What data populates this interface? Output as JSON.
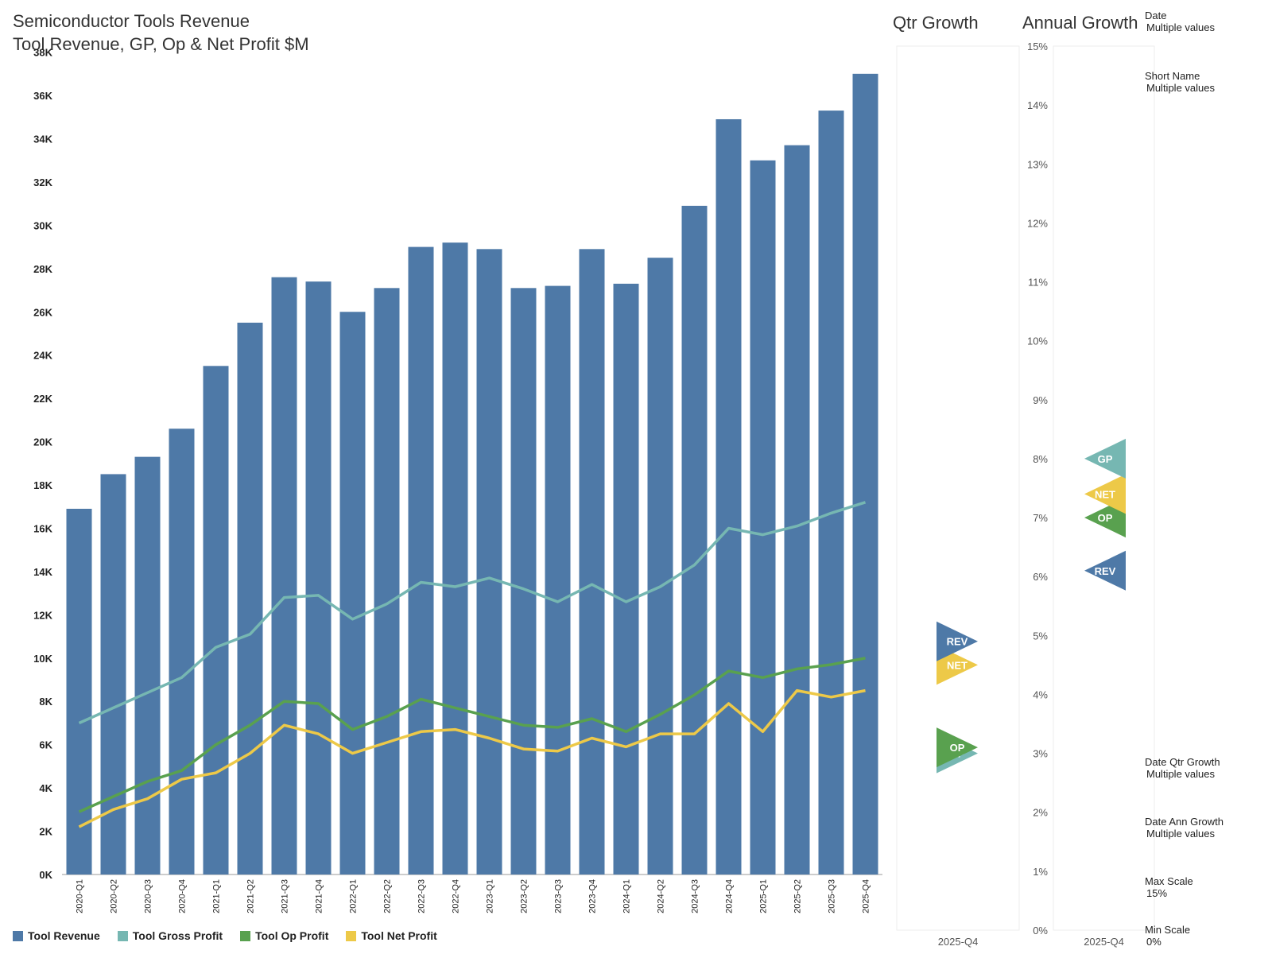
{
  "titles": {
    "line1": "Semiconductor Tools Revenue",
    "line2": "Tool Revenue, GP, Op & Net Profit $M",
    "qtr": "Qtr Growth",
    "ann": "Annual Growth"
  },
  "filters": [
    {
      "label": "Date",
      "value": "Multiple values"
    },
    {
      "label": "Short Name",
      "value": "Multiple values"
    },
    {
      "label": "Date Qtr Growth",
      "value": "Multiple values"
    },
    {
      "label": "Date Ann Growth",
      "value": "Multiple values"
    },
    {
      "label": "Max Scale",
      "value": "15%"
    },
    {
      "label": "Min Scale",
      "value": "0%"
    }
  ],
  "colors": {
    "revenue": "#4e79a7",
    "gross_profit": "#76b7b2",
    "op_profit": "#59a14f",
    "net_profit": "#edc948",
    "axis": "#555555",
    "pane_border": "#eeeeee"
  },
  "chart_data": [
    {
      "type": "bar",
      "title": "Semiconductor Tools Revenue — Tool Revenue, GP, Op & Net Profit $M",
      "categories": [
        "2020-Q1",
        "2020-Q2",
        "2020-Q3",
        "2020-Q4",
        "2021-Q1",
        "2021-Q2",
        "2021-Q3",
        "2021-Q4",
        "2022-Q1",
        "2022-Q2",
        "2022-Q3",
        "2022-Q4",
        "2023-Q1",
        "2023-Q2",
        "2023-Q3",
        "2023-Q4",
        "2024-Q1",
        "2024-Q2",
        "2024-Q3",
        "2024-Q4",
        "2025-Q1",
        "2025-Q2",
        "2025-Q3",
        "2025-Q4"
      ],
      "ylim": [
        0,
        38500
      ],
      "yticks": [
        0,
        2000,
        4000,
        6000,
        8000,
        10000,
        12000,
        14000,
        16000,
        18000,
        20000,
        22000,
        24000,
        26000,
        28000,
        30000,
        32000,
        34000,
        36000,
        38000
      ],
      "ytick_labels": [
        "0K",
        "2K",
        "4K",
        "6K",
        "8K",
        "10K",
        "12K",
        "14K",
        "16K",
        "18K",
        "20K",
        "22K",
        "24K",
        "26K",
        "28K",
        "30K",
        "32K",
        "34K",
        "36K",
        "38K"
      ],
      "series": [
        {
          "name": "Tool Revenue",
          "kind": "bar",
          "color_key": "revenue",
          "values": [
            16900,
            18500,
            19300,
            20600,
            23500,
            25500,
            27600,
            27400,
            26000,
            27100,
            29000,
            29200,
            28900,
            27100,
            27200,
            28900,
            27300,
            28500,
            30900,
            34900,
            33000,
            33700,
            35300,
            37000
          ]
        },
        {
          "name": "Tool Gross Profit",
          "kind": "line",
          "color_key": "gross_profit",
          "values": [
            7000,
            7700,
            8400,
            9100,
            10500,
            11100,
            12800,
            12900,
            11800,
            12500,
            13500,
            13300,
            13700,
            13200,
            12600,
            13400,
            12600,
            13300,
            14300,
            16000,
            15700,
            16100,
            16700,
            17200
          ]
        },
        {
          "name": "Tool Op Profit",
          "kind": "line",
          "color_key": "op_profit",
          "values": [
            2900,
            3600,
            4300,
            4800,
            6000,
            6900,
            8000,
            7900,
            6700,
            7300,
            8100,
            7700,
            7300,
            6900,
            6800,
            7200,
            6600,
            7400,
            8300,
            9400,
            9100,
            9500,
            9700,
            10000
          ]
        },
        {
          "name": "Tool Net Profit",
          "kind": "line",
          "color_key": "net_profit",
          "values": [
            2200,
            3000,
            3500,
            4400,
            4700,
            5600,
            6900,
            6500,
            5600,
            6100,
            6600,
            6700,
            6300,
            5800,
            5700,
            6300,
            5900,
            6500,
            6500,
            7900,
            6600,
            8500,
            8200,
            8500
          ]
        }
      ]
    },
    {
      "type": "scatter",
      "title": "Qtr Growth",
      "x_category": "2025-Q4",
      "ylim": [
        0,
        15
      ],
      "unit": "%",
      "points": [
        {
          "label": "REV",
          "value": 4.9,
          "color_key": "revenue"
        },
        {
          "label": "NET",
          "value": 4.5,
          "color_key": "net_profit"
        },
        {
          "label": "OP",
          "value": 3.1,
          "color_key": "op_profit"
        },
        {
          "label": "GP",
          "value": 3.0,
          "color_key": "gross_profit"
        }
      ]
    },
    {
      "type": "scatter",
      "title": "Annual Growth",
      "x_category": "2025-Q4",
      "ylim": [
        0,
        15
      ],
      "unit": "%",
      "yticks": [
        0,
        1,
        2,
        3,
        4,
        5,
        6,
        7,
        8,
        9,
        10,
        11,
        12,
        13,
        14,
        15
      ],
      "ytick_labels": [
        "0%",
        "1%",
        "2%",
        "3%",
        "4%",
        "5%",
        "6%",
        "7%",
        "8%",
        "9%",
        "10%",
        "11%",
        "12%",
        "13%",
        "14%",
        "15%"
      ],
      "points": [
        {
          "label": "GP",
          "value": 8.0,
          "color_key": "gross_profit"
        },
        {
          "label": "NET",
          "value": 7.4,
          "color_key": "net_profit"
        },
        {
          "label": "OP",
          "value": 7.0,
          "color_key": "op_profit"
        },
        {
          "label": "REV",
          "value": 6.1,
          "color_key": "revenue"
        }
      ]
    }
  ]
}
